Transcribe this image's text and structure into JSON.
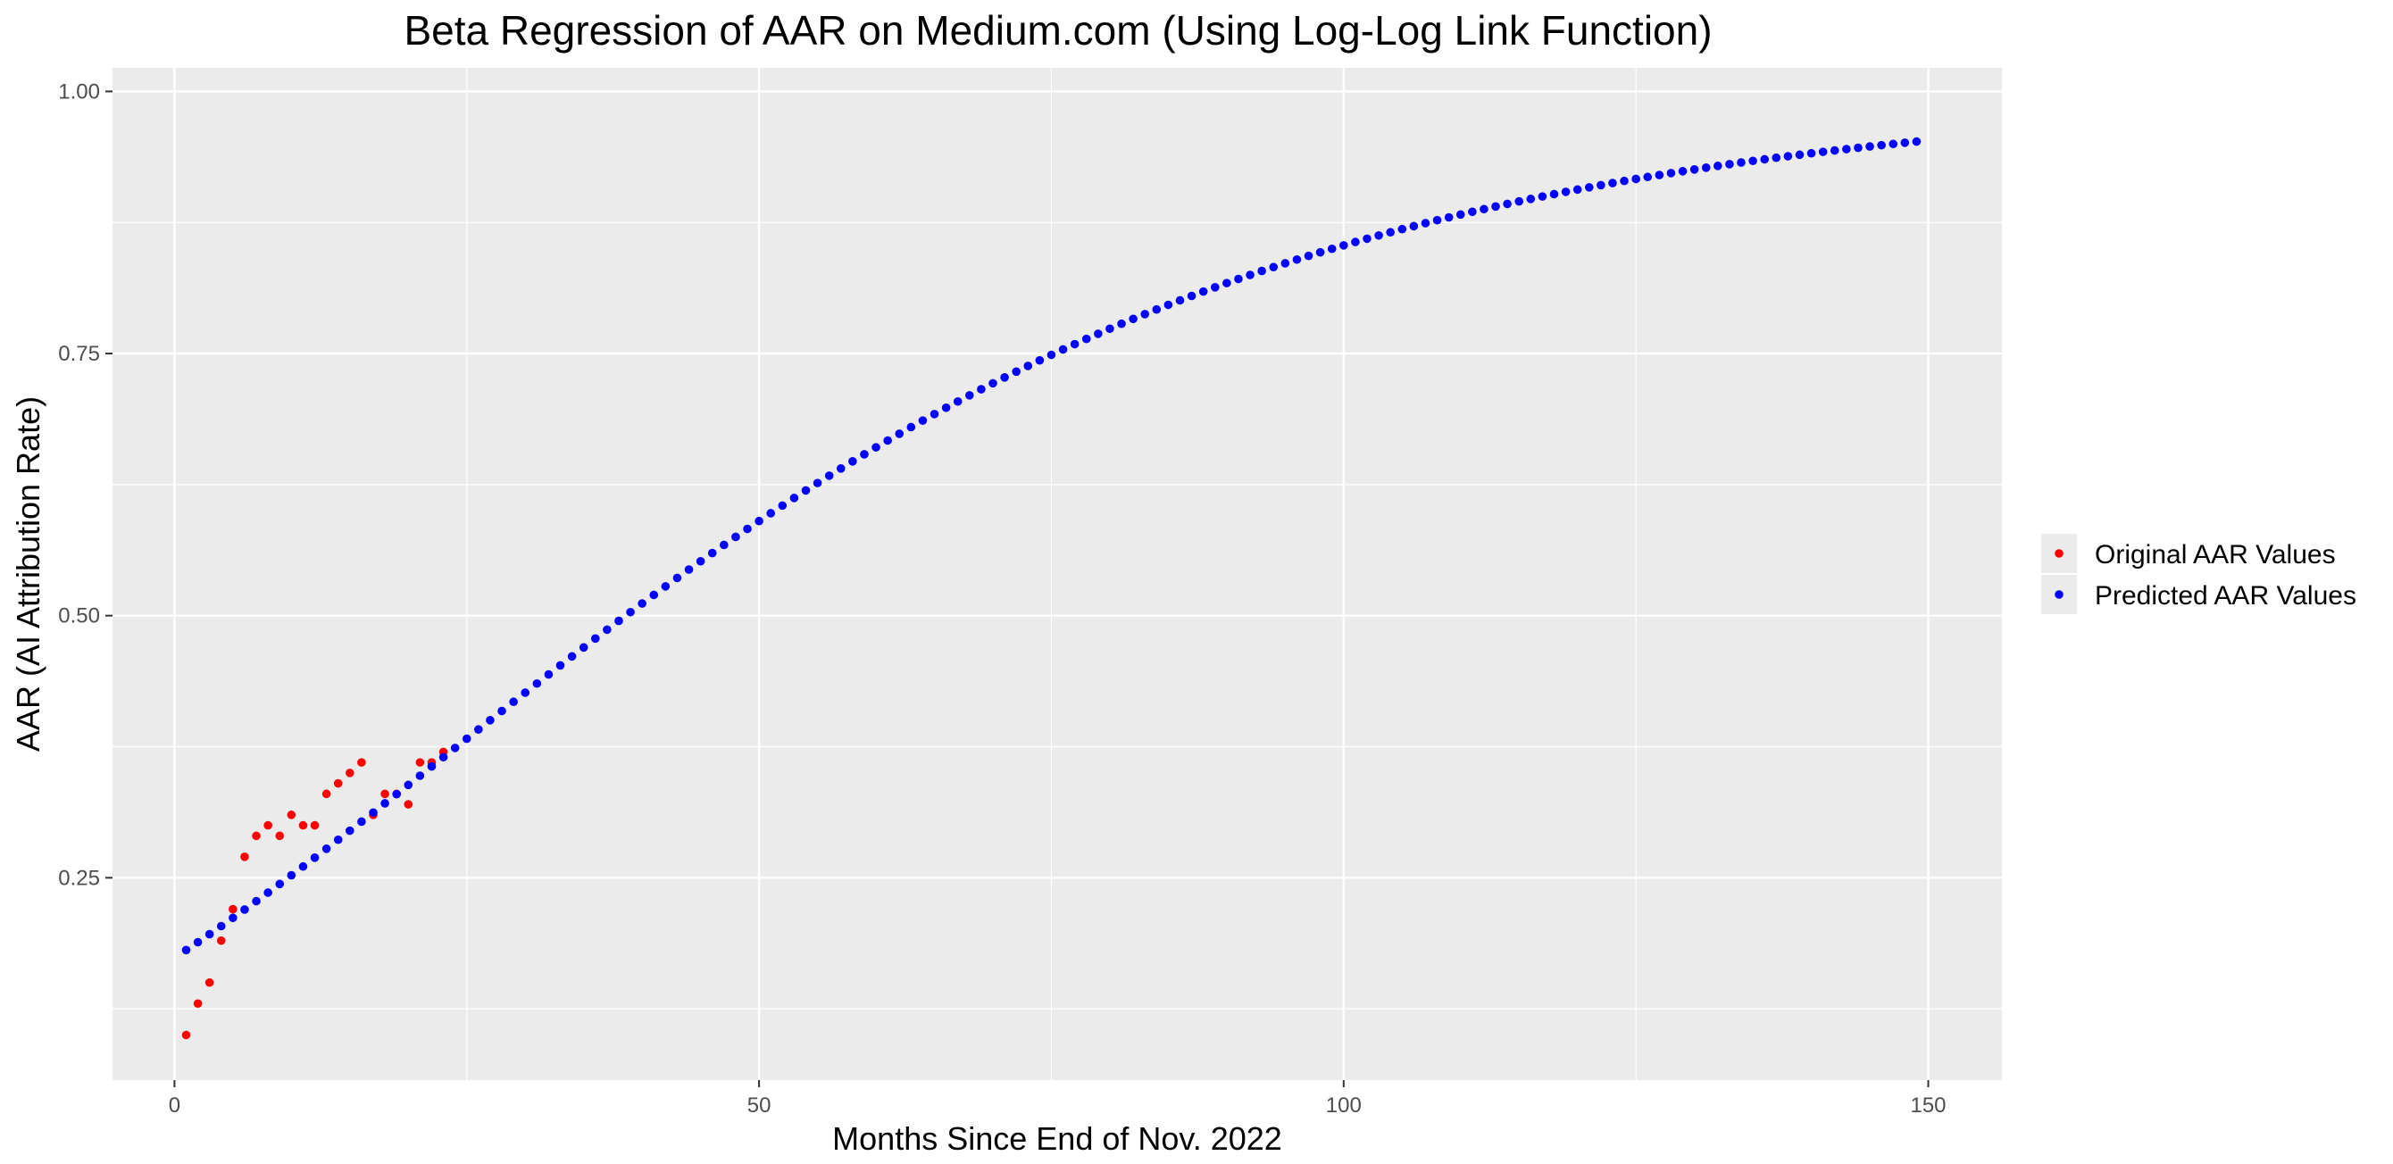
{
  "chart_data": {
    "type": "scatter",
    "title": "Beta Regression of AAR on Medium.com (Using Log-Log Link Function)",
    "xlabel": "Months Since End of Nov. 2022",
    "ylabel": "AAR (AI Attribution Rate)",
    "xlim": [
      -5.3,
      156.3
    ],
    "ylim": [
      0.057,
      1.0225
    ],
    "x_ticks": [
      0,
      50,
      100,
      150
    ],
    "x_tick_labels": [
      "0",
      "50",
      "100",
      "150"
    ],
    "y_ticks": [
      0.25,
      0.5,
      0.75,
      1.0
    ],
    "y_tick_labels": [
      "0.25",
      "0.50",
      "0.75",
      "1.00"
    ],
    "grid": true,
    "legend_position": "right",
    "legend": [
      "Original AAR Values",
      "Predicted AAR Values"
    ],
    "colors": {
      "panel": "#ebebeb",
      "grid": "#ffffff",
      "original": "#ff0000",
      "predicted": "#0000ff"
    },
    "series": [
      {
        "name": "Original AAR Values",
        "color": "#ff0000",
        "x": [
          1,
          2,
          3,
          4,
          5,
          6,
          7,
          8,
          9,
          10,
          11,
          12,
          13,
          14,
          15,
          16,
          17,
          18,
          19,
          20,
          21,
          22,
          23
        ],
        "y": [
          0.1,
          0.13,
          0.15,
          0.19,
          0.22,
          0.27,
          0.29,
          0.3,
          0.29,
          0.31,
          0.3,
          0.3,
          0.33,
          0.34,
          0.35,
          0.36,
          0.31,
          0.33,
          0.33,
          0.32,
          0.36,
          0.36,
          0.37
        ]
      },
      {
        "name": "Predicted AAR Values",
        "color": "#0000ff",
        "x_start": 1,
        "x_end": 149,
        "x_step": 1,
        "model": "loglog",
        "coefficients": {
          "intercept": -0.5599,
          "slope": 0.024
        }
      }
    ]
  }
}
